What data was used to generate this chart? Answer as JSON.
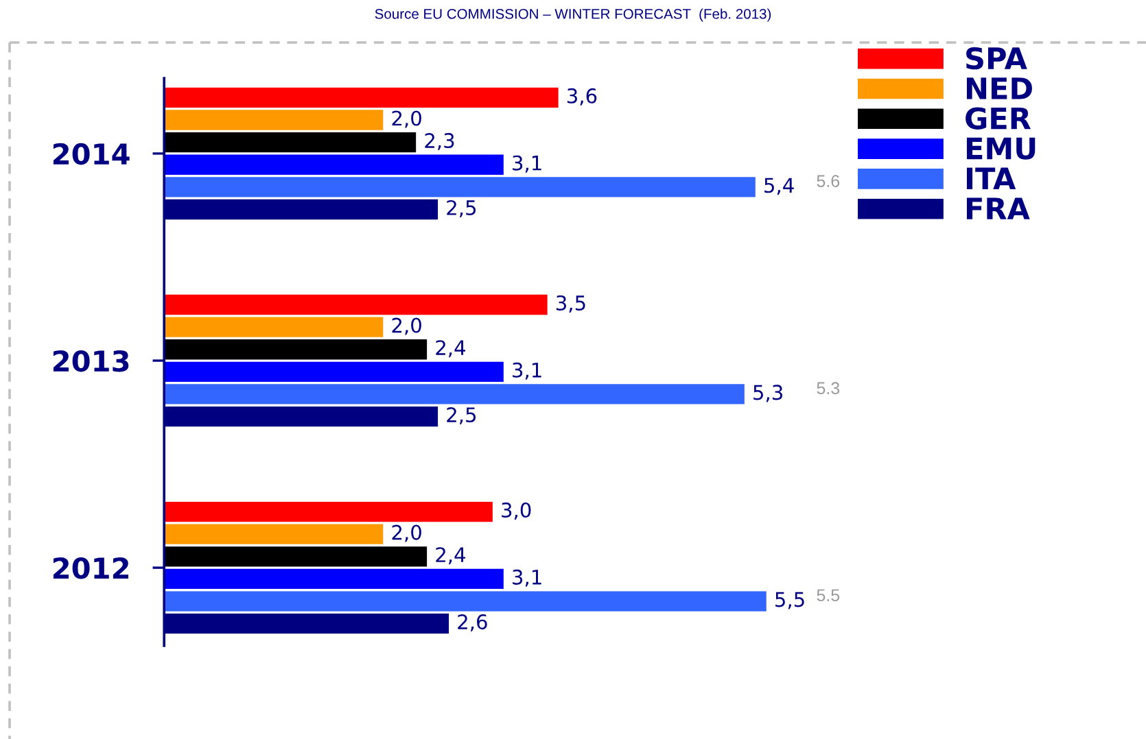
{
  "chart_data": {
    "type": "bar",
    "orientation": "horizontal",
    "title": "Source EU COMMISSION – WINTER FORECAST  (Feb. 2013)",
    "categories": [
      "2014",
      "2013",
      "2012"
    ],
    "series": [
      {
        "name": "SPA",
        "color": "#ff0000",
        "values": [
          3.6,
          3.5,
          3.0
        ],
        "value_labels": [
          "3,6",
          "3,5",
          "3,0"
        ]
      },
      {
        "name": "NED",
        "color": "#ff9900",
        "values": [
          2.0,
          2.0,
          2.0
        ],
        "value_labels": [
          "2,0",
          "2,0",
          "2,0"
        ]
      },
      {
        "name": "GER",
        "color": "#000000",
        "values": [
          2.3,
          2.4,
          2.4
        ],
        "value_labels": [
          "2,3",
          "2,4",
          "2,4"
        ]
      },
      {
        "name": "EMU",
        "color": "#0000ff",
        "values": [
          3.1,
          3.1,
          3.1
        ],
        "value_labels": [
          "3,1",
          "3,1",
          "3,1"
        ]
      },
      {
        "name": "ITA",
        "color": "#3366ff",
        "values": [
          5.4,
          5.3,
          5.5
        ],
        "value_labels": [
          "5,4",
          "5,3",
          "5,5"
        ]
      },
      {
        "name": "FRA",
        "color": "#000080",
        "values": [
          2.5,
          2.5,
          2.6
        ],
        "value_labels": [
          "2,5",
          "2,5",
          "2,6"
        ]
      }
    ],
    "annotations": [
      "5.6",
      "5.3",
      "5.5"
    ],
    "legend": "top right",
    "tick_labels": "y"
  }
}
